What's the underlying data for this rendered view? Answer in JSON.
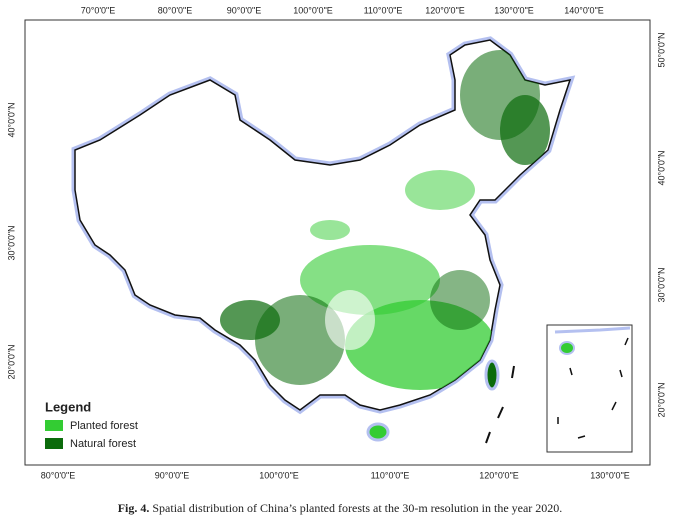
{
  "axes": {
    "top": [
      "70°0'0\"E",
      "80°0'0\"E",
      "90°0'0\"E",
      "100°0'0\"E",
      "110°0'0\"E",
      "120°0'0\"E",
      "130°0'0\"E",
      "140°0'0\"E"
    ],
    "bottom": [
      "80°0'0\"E",
      "90°0'0\"E",
      "100°0'0\"E",
      "110°0'0\"E",
      "120°0'0\"E",
      "130°0'0\"E"
    ],
    "left": [
      "40°0'0\"N",
      "30°0'0\"N",
      "20°0'0\"N"
    ],
    "right": [
      "50°0'0\"N",
      "40°0'0\"N",
      "30°0'0\"N",
      "20°0'0\"N"
    ]
  },
  "legend": {
    "title": "Legend",
    "items": [
      {
        "label": "Planted forest",
        "color": "#33cc33"
      },
      {
        "label": "Natural forest",
        "color": "#0b6b0b"
      }
    ]
  },
  "caption": {
    "label": "Fig. 4.",
    "text": "Spatial distribution of China’s planted forests at the 30-m resolution in the year 2020."
  }
}
